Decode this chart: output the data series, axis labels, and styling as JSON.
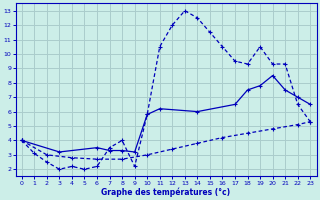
{
  "xlabel": "Graphe des températures (°c)",
  "background_color": "#cceee8",
  "grid_color": "#aacccc",
  "line_color": "#0000bb",
  "xlim": [
    -0.5,
    23.5
  ],
  "ylim": [
    1.5,
    13.5
  ],
  "xticks": [
    0,
    1,
    2,
    3,
    4,
    5,
    6,
    7,
    8,
    9,
    10,
    11,
    12,
    13,
    14,
    15,
    16,
    17,
    18,
    19,
    20,
    21,
    22,
    23
  ],
  "yticks": [
    2,
    3,
    4,
    5,
    6,
    7,
    8,
    9,
    10,
    11,
    12,
    13
  ],
  "line1_x": [
    0,
    1,
    2,
    3,
    4,
    5,
    6,
    7,
    8,
    9,
    10,
    11,
    12,
    13,
    14,
    15,
    16,
    17,
    18,
    19,
    20,
    21,
    22,
    23
  ],
  "line1_y": [
    4.0,
    3.1,
    2.5,
    2.0,
    2.2,
    2.0,
    2.2,
    3.5,
    4.0,
    2.2,
    5.8,
    10.5,
    12.0,
    13.0,
    12.5,
    11.5,
    10.5,
    9.5,
    9.3,
    10.5,
    9.3,
    9.3,
    6.5,
    5.3
  ],
  "line2_x": [
    0,
    2,
    4,
    6,
    8,
    10,
    12,
    14,
    16,
    18,
    20,
    22,
    23
  ],
  "line2_y": [
    4.0,
    3.0,
    2.8,
    2.7,
    2.7,
    3.0,
    3.4,
    3.8,
    4.2,
    4.5,
    4.8,
    5.1,
    5.3
  ],
  "line3_x": [
    0,
    3,
    6,
    7,
    8,
    9,
    10,
    11,
    14,
    17,
    18,
    19,
    20,
    21,
    22,
    23
  ],
  "line3_y": [
    4.0,
    3.2,
    3.5,
    3.3,
    3.3,
    3.2,
    5.8,
    6.2,
    6.0,
    6.5,
    7.5,
    7.8,
    8.5,
    7.5,
    7.0,
    6.5
  ]
}
